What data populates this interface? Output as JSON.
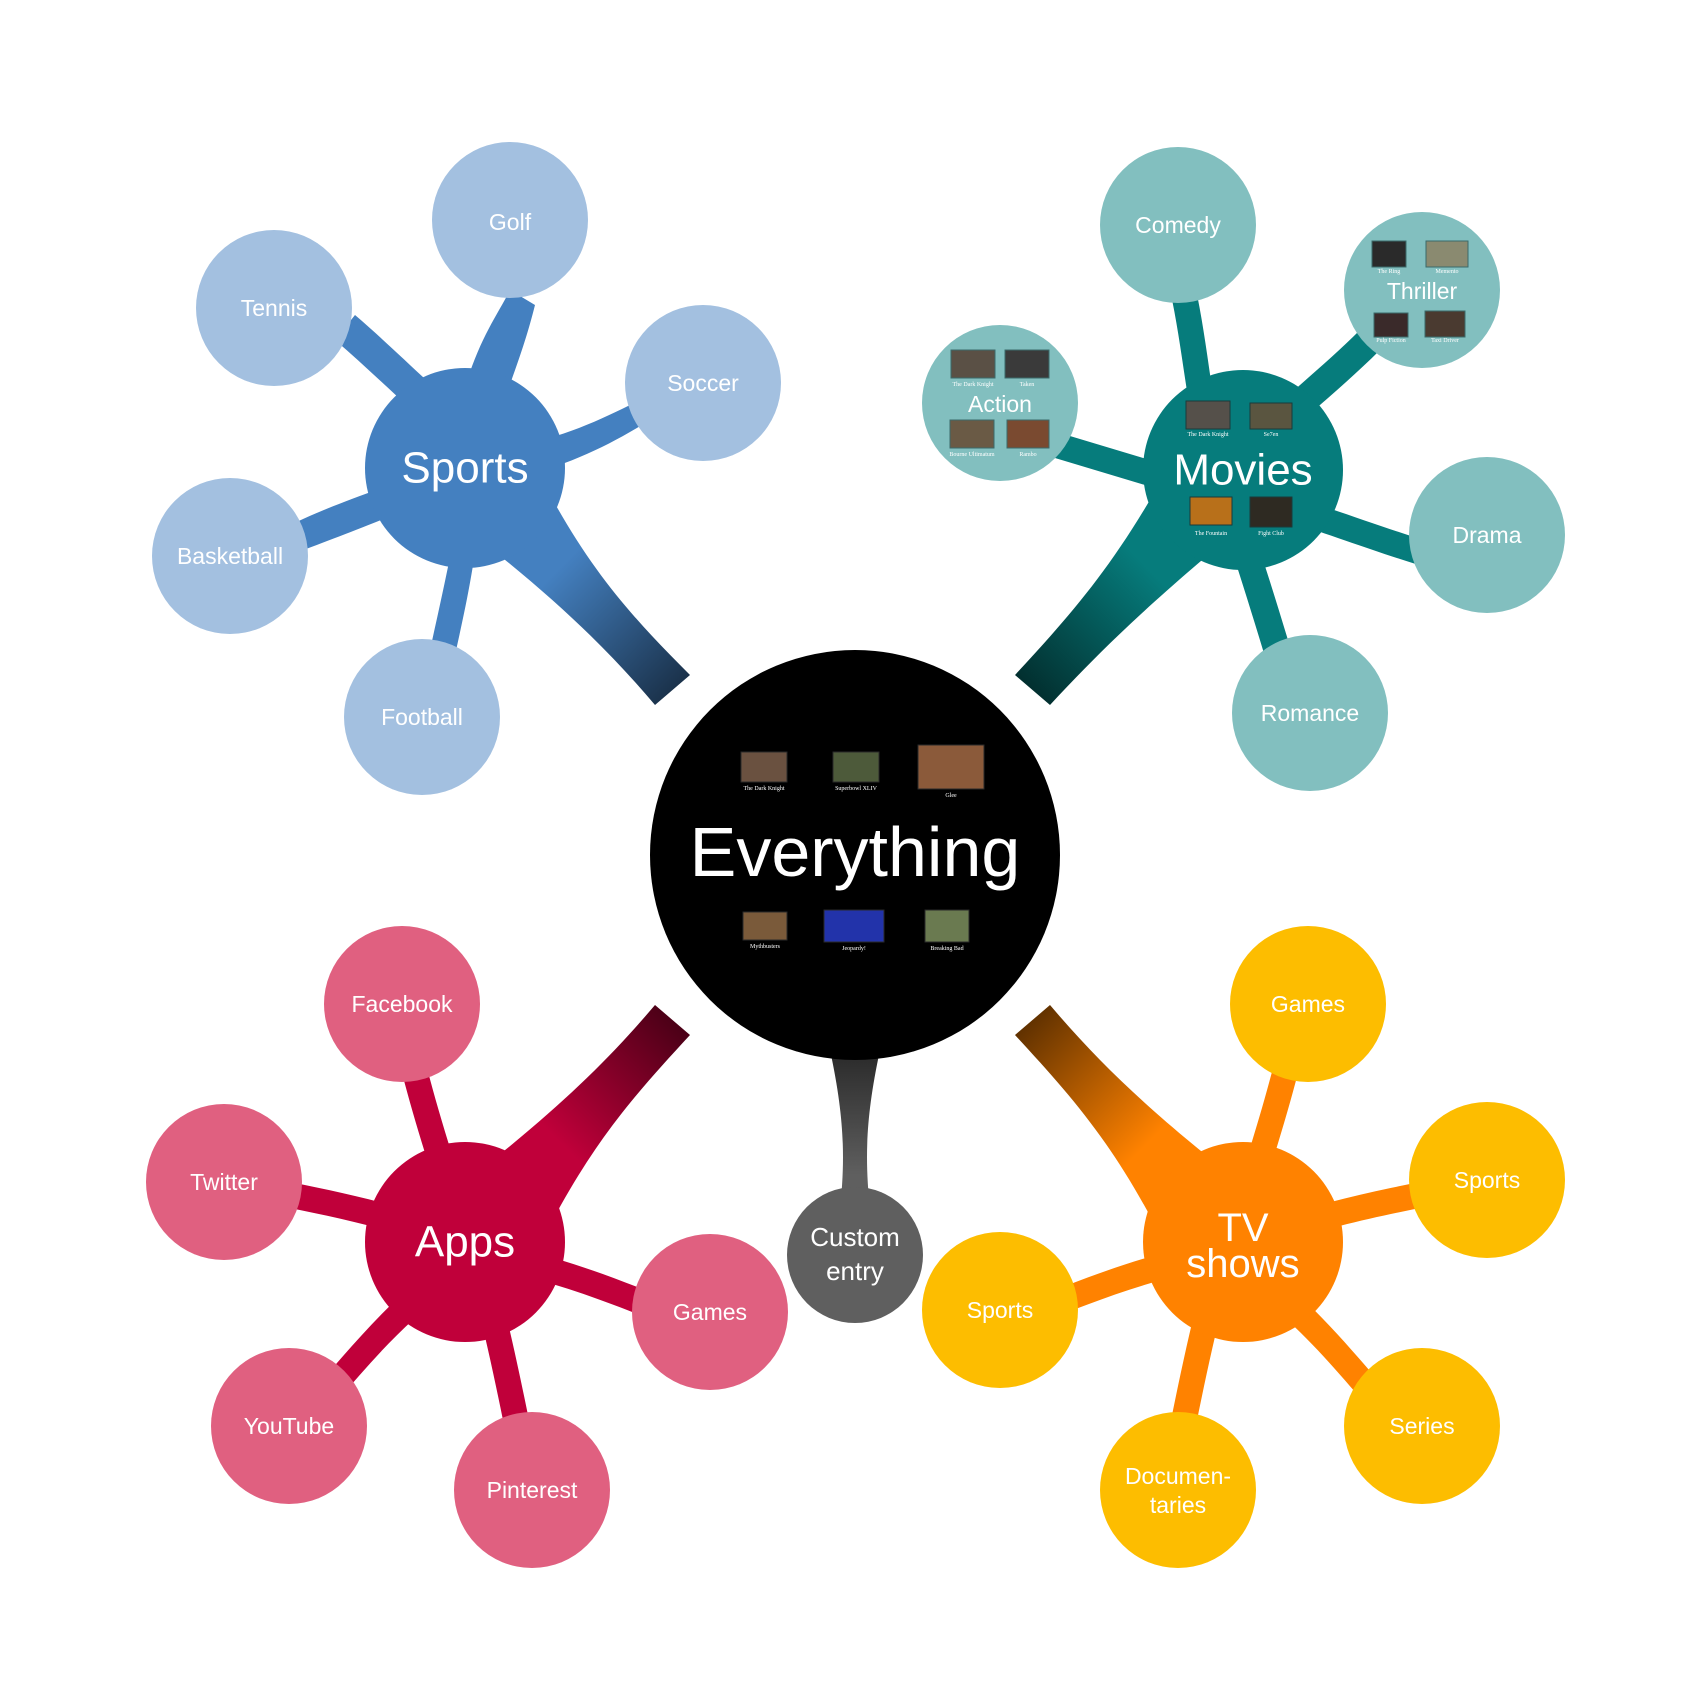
{
  "center": {
    "title": "Everything",
    "color": "#000000",
    "thumbnails_top": [
      "The Dark Knight",
      "Superbowl XLIV",
      "Glee"
    ],
    "thumbnails_bottom": [
      "Mythbusters",
      "Jeopardy!",
      "Breaking Bad"
    ]
  },
  "custom": {
    "line1": "Custom",
    "line2": "entry",
    "color": "#5f5f5f"
  },
  "sports": {
    "title": "Sports",
    "color": "#4480c0",
    "leaf_color": "#a3c0e0",
    "leaves": [
      "Golf",
      "Tennis",
      "Soccer",
      "Basketball",
      "Football"
    ]
  },
  "movies": {
    "title": "Movies",
    "color": "#067c7c",
    "leaf_color": "#82bfbf",
    "thumbnails_top": [
      "The Dark Knight",
      "Se7en"
    ],
    "thumbnails_bottom": [
      "The Fountain",
      "Fight Club"
    ],
    "leaves": [
      "Comedy",
      "Drama",
      "Romance"
    ],
    "action": {
      "title": "Action",
      "thumbnails": [
        "The Dark Knight",
        "Taken",
        "Bourne Ultimatum",
        "Rambo"
      ]
    },
    "thriller": {
      "title": "Thriller",
      "thumbnails": [
        "The Ring",
        "Memento",
        "Pulp Fiction",
        "Taxi Driver"
      ]
    }
  },
  "apps": {
    "title": "Apps",
    "color": "#c0003a",
    "leaf_color": "#e06080",
    "leaves": [
      "Facebook",
      "Twitter",
      "Games",
      "YouTube",
      "Pinterest"
    ]
  },
  "tv": {
    "title_line1": "TV",
    "title_line2": "shows",
    "color": "#ff8200",
    "leaf_color": "#fdbd00",
    "leaves": [
      "Games",
      "Sports",
      "Sports",
      "Series"
    ],
    "documentaries": {
      "line1": "Documen-",
      "line2": "taries"
    }
  }
}
